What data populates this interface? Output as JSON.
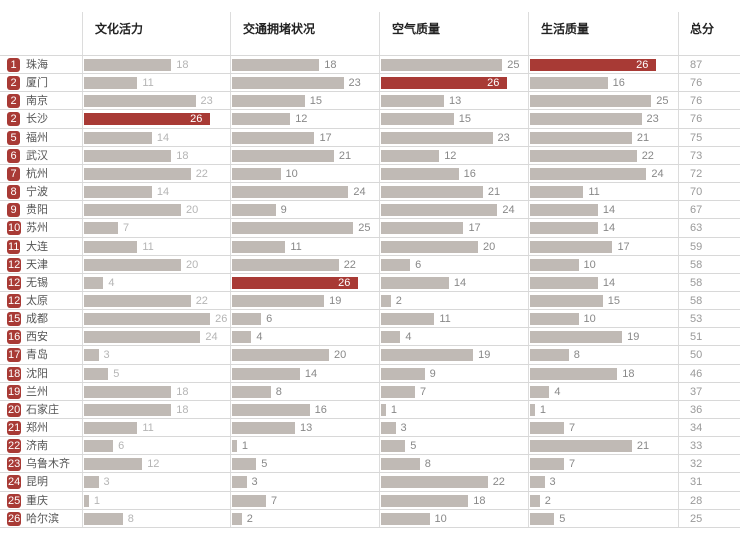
{
  "chart_data": {
    "type": "bar",
    "title": "",
    "columns": [
      "文化活力",
      "交通拥堵状况",
      "空气质量",
      "生活质量",
      "总分"
    ],
    "categories": [
      "珠海",
      "厦门",
      "南京",
      "长沙",
      "福州",
      "武汉",
      "杭州",
      "宁波",
      "贵阳",
      "苏州",
      "大连",
      "天津",
      "无锡",
      "太原",
      "成都",
      "西安",
      "青岛",
      "沈阳",
      "兰州",
      "石家庄",
      "郑州",
      "济南",
      "乌鲁木齐",
      "昆明",
      "重庆",
      "哈尔滨"
    ],
    "ranks": [
      1,
      2,
      2,
      2,
      5,
      6,
      7,
      8,
      9,
      10,
      11,
      12,
      12,
      12,
      15,
      16,
      17,
      18,
      19,
      20,
      21,
      22,
      23,
      24,
      25,
      26
    ],
    "series": [
      {
        "name": "文化活力",
        "values": [
          18,
          11,
          23,
          26,
          14,
          18,
          22,
          14,
          20,
          7,
          11,
          20,
          4,
          22,
          26,
          24,
          3,
          5,
          18,
          18,
          11,
          6,
          12,
          3,
          1,
          8
        ],
        "highlight_index": 3
      },
      {
        "name": "交通拥堵状况",
        "values": [
          18,
          23,
          15,
          12,
          17,
          21,
          10,
          24,
          9,
          25,
          11,
          22,
          26,
          19,
          6,
          4,
          20,
          14,
          8,
          16,
          13,
          1,
          5,
          3,
          7,
          2
        ],
        "highlight_index": 12
      },
      {
        "name": "空气质量",
        "values": [
          25,
          26,
          13,
          15,
          23,
          12,
          16,
          21,
          24,
          17,
          20,
          6,
          14,
          2,
          11,
          4,
          19,
          9,
          7,
          1,
          3,
          5,
          8,
          22,
          18,
          10
        ],
        "highlight_index": 1
      },
      {
        "name": "生活质量",
        "values": [
          26,
          16,
          25,
          23,
          21,
          22,
          24,
          11,
          14,
          14,
          17,
          10,
          14,
          15,
          10,
          19,
          8,
          18,
          4,
          1,
          7,
          21,
          7,
          3,
          2,
          5
        ],
        "highlight_index": 0
      }
    ],
    "totals": [
      87,
      76,
      76,
      76,
      75,
      73,
      72,
      70,
      67,
      63,
      59,
      58,
      58,
      58,
      53,
      51,
      50,
      46,
      37,
      36,
      34,
      33,
      32,
      31,
      28,
      25
    ],
    "xlim": [
      0,
      26
    ],
    "colors": {
      "bar": "#c0bab5",
      "highlight": "#a83a35",
      "badge": "#a83a35"
    },
    "grid": false,
    "legend": "none"
  },
  "headers": {
    "culture": "文化活力",
    "traffic": "交通拥堵状况",
    "air": "空气质量",
    "life": "生活质量",
    "total": "总分"
  }
}
